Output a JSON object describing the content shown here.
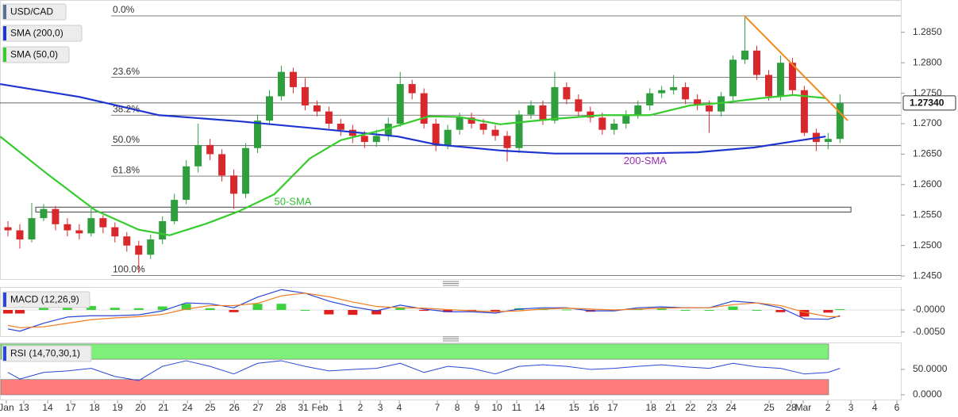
{
  "chart_data": [
    {
      "type": "candlestick",
      "title": "USD/CAD",
      "xlim": [
        -0.835,
        37.06
      ],
      "ylim": [
        1.2445,
        1.2903
      ],
      "yticks": [
        {
          "value": 1.285,
          "label": "1.2850"
        },
        {
          "value": 1.28,
          "label": "1.2800"
        },
        {
          "value": 1.275,
          "label": "1.2750"
        },
        {
          "value": 1.27,
          "label": "1.2700"
        },
        {
          "value": 1.265,
          "label": "1.2650"
        },
        {
          "value": 1.26,
          "label": "1.2600"
        },
        {
          "value": 1.255,
          "label": "1.2550"
        },
        {
          "value": 1.25,
          "label": "1.2500"
        },
        {
          "value": 1.245,
          "label": "1.2450"
        }
      ],
      "up_color": "#2e9e3e",
      "down_color": "#d9282b",
      "x": [
        -0.5,
        0,
        0.5,
        1,
        1.5,
        2,
        2.5,
        3,
        3.5,
        4,
        4.5,
        5,
        5.5,
        6,
        6.5,
        7,
        7.5,
        8,
        8.5,
        9,
        9.5,
        10,
        10.5,
        11,
        11.5,
        12,
        12.5,
        13,
        13.5,
        14,
        14.5,
        15,
        15.5,
        16,
        16.5,
        17,
        17.5,
        18,
        18.5,
        19,
        19.5,
        20,
        20.5,
        21,
        21.5,
        22,
        22.5,
        23,
        23.5,
        24,
        24.5,
        25,
        25.5,
        26,
        26.5,
        27,
        27.5,
        28,
        28.5,
        29,
        29.5,
        30,
        30.5,
        31,
        31.5,
        32,
        32.5,
        33,
        33.5,
        34,
        34.5
      ],
      "open": [
        1.253,
        1.2525,
        1.251,
        1.2545,
        1.256,
        1.2535,
        1.2525,
        1.252,
        1.2545,
        1.253,
        1.2515,
        1.25,
        1.2485,
        1.251,
        1.254,
        1.2575,
        1.263,
        1.2665,
        1.265,
        1.2615,
        1.2585,
        1.266,
        1.2705,
        1.2745,
        1.2785,
        1.276,
        1.273,
        1.272,
        1.27,
        1.269,
        1.268,
        1.267,
        1.268,
        1.27,
        1.2765,
        1.275,
        1.27,
        1.2665,
        1.269,
        1.271,
        1.27,
        1.269,
        1.268,
        1.266,
        1.2715,
        1.273,
        1.2705,
        1.276,
        1.274,
        1.272,
        1.271,
        1.269,
        1.27,
        1.2715,
        1.273,
        1.275,
        1.2755,
        1.276,
        1.274,
        1.273,
        1.272,
        1.2745,
        1.2805,
        1.282,
        1.278,
        1.2745,
        1.28,
        1.2755,
        1.2685,
        1.267,
        1.2675
      ],
      "high": [
        1.254,
        1.2535,
        1.257,
        1.2568,
        1.2565,
        1.2545,
        1.2535,
        1.2565,
        1.255,
        1.2538,
        1.2522,
        1.2508,
        1.2518,
        1.2548,
        1.2585,
        1.264,
        1.27,
        1.2675,
        1.2658,
        1.2625,
        1.2668,
        1.2715,
        1.2755,
        1.2795,
        1.2792,
        1.2775,
        1.2738,
        1.2728,
        1.2708,
        1.2698,
        1.2688,
        1.269,
        1.271,
        1.2785,
        1.2772,
        1.2758,
        1.2708,
        1.2698,
        1.2718,
        1.2718,
        1.2708,
        1.2698,
        1.2688,
        1.2722,
        1.2738,
        1.2738,
        1.2785,
        1.2768,
        1.2748,
        1.2728,
        1.2718,
        1.2708,
        1.2722,
        1.2738,
        1.2758,
        1.2762,
        1.278,
        1.2768,
        1.2748,
        1.2738,
        1.2752,
        1.2812,
        1.2875,
        1.2828,
        1.2788,
        1.2812,
        1.2808,
        1.2762,
        1.2692,
        1.2685,
        1.2748
      ],
      "low": [
        1.2515,
        1.2495,
        1.2505,
        1.254,
        1.2525,
        1.2515,
        1.251,
        1.2515,
        1.252,
        1.2505,
        1.249,
        1.2455,
        1.2478,
        1.2502,
        1.2535,
        1.2568,
        1.262,
        1.264,
        1.2605,
        1.256,
        1.2578,
        1.2652,
        1.2698,
        1.2738,
        1.275,
        1.2722,
        1.2712,
        1.2692,
        1.268,
        1.2668,
        1.266,
        1.2662,
        1.2672,
        1.2695,
        1.274,
        1.2692,
        1.2655,
        1.2658,
        1.2682,
        1.2692,
        1.2682,
        1.2672,
        1.2638,
        1.2652,
        1.2708,
        1.2698,
        1.27,
        1.2732,
        1.2712,
        1.2702,
        1.2682,
        1.2682,
        1.2692,
        1.2708,
        1.2722,
        1.2742,
        1.2748,
        1.2732,
        1.2722,
        1.2685,
        1.2712,
        1.2738,
        1.2798,
        1.2772,
        1.2738,
        1.2738,
        1.2748,
        1.268,
        1.2655,
        1.2658,
        1.2668
      ],
      "close": [
        1.2525,
        1.251,
        1.2545,
        1.256,
        1.2535,
        1.2525,
        1.252,
        1.2545,
        1.253,
        1.2515,
        1.25,
        1.2485,
        1.251,
        1.254,
        1.2575,
        1.263,
        1.2665,
        1.265,
        1.2615,
        1.2585,
        1.266,
        1.2705,
        1.2745,
        1.2785,
        1.276,
        1.273,
        1.272,
        1.27,
        1.269,
        1.268,
        1.267,
        1.268,
        1.27,
        1.2765,
        1.275,
        1.27,
        1.2665,
        1.269,
        1.271,
        1.27,
        1.269,
        1.268,
        1.266,
        1.2715,
        1.273,
        1.2705,
        1.276,
        1.274,
        1.272,
        1.271,
        1.269,
        1.27,
        1.2715,
        1.273,
        1.275,
        1.2755,
        1.276,
        1.274,
        1.273,
        1.272,
        1.2745,
        1.2805,
        1.282,
        1.278,
        1.2745,
        1.28,
        1.2755,
        1.2685,
        1.267,
        1.2675,
        1.2734
      ],
      "series": [
        {
          "name": "SMA (200,0)",
          "color": "#1f35d0",
          "x": [
            -0.83,
            2.5,
            5.85,
            9.2,
            12.5,
            15.9,
            17.5,
            20.2,
            22.5,
            25.9,
            28.5,
            30.9,
            32.55,
            33.9
          ],
          "values": [
            1.2765,
            1.2744,
            1.2714,
            1.2704,
            1.2692,
            1.2679,
            1.2666,
            1.2656,
            1.2651,
            1.2651,
            1.2653,
            1.2661,
            1.2671,
            1.2679
          ]
        },
        {
          "name": "SMA (50,0)",
          "color": "#36cc2e",
          "x": [
            -0.83,
            1.17,
            3.17,
            5,
            6.3,
            7.85,
            9.2,
            10.7,
            12.2,
            13.5,
            15.5,
            17.2,
            18.5,
            20.2,
            22.5,
            24.5,
            26.5,
            28.2,
            29.5,
            31.2,
            32.55,
            33.9
          ],
          "values": [
            1.2679,
            1.2617,
            1.2558,
            1.2526,
            1.2517,
            1.2536,
            1.2556,
            1.2584,
            1.2643,
            1.2673,
            1.2692,
            1.2712,
            1.2711,
            1.2699,
            1.2708,
            1.2714,
            1.2714,
            1.273,
            1.2734,
            1.2742,
            1.2747,
            1.2742
          ]
        }
      ],
      "fib_levels": [
        {
          "label": "0.0%",
          "value": 1.2877
        },
        {
          "label": "23.6%",
          "value": 1.2776
        },
        {
          "label": "38.2%",
          "value": 1.2714
        },
        {
          "label": "50.0%",
          "value": 1.2664
        },
        {
          "label": "61.8%",
          "value": 1.2614
        },
        {
          "label": "100.0%",
          "value": 1.2451
        }
      ],
      "last_price": {
        "value": 1.2734,
        "label": "1.27340"
      },
      "trendline": {
        "color": "#f28a1e",
        "x": [
          30.48,
          34.83
        ],
        "values": [
          1.2877,
          1.2705
        ]
      },
      "range_box": {
        "x": [
          0.67,
          34.96
        ],
        "values": [
          1.2555,
          1.2563
        ]
      },
      "annotations": [
        {
          "text": "50-SMA",
          "x": 10.7,
          "y": 1.2571,
          "color": "#2fbf2f"
        },
        {
          "text": "200-SMA",
          "x": 25.4,
          "y": 1.2638,
          "color": "#9b30b0"
        }
      ]
    },
    {
      "type": "macd",
      "title": "MACD (12,26,9)",
      "xlim": [
        -0.835,
        37.06
      ],
      "ylim": [
        -0.0061,
        0.0052
      ],
      "yticks": [
        {
          "value": 0,
          "label": "-0.0000"
        },
        {
          "value": -0.005,
          "label": "-0.0050"
        }
      ],
      "x": [
        -0.5,
        0,
        1,
        2,
        3,
        4,
        5,
        6,
        7,
        8,
        9,
        10,
        11,
        12,
        13,
        14,
        15,
        16,
        17,
        18,
        19,
        20,
        21,
        22,
        23,
        24,
        25,
        26,
        27,
        28,
        29,
        30,
        31,
        32,
        33,
        34,
        34.5
      ],
      "series": [
        {
          "color": "#2a46d6",
          "values": [
            -0.0043,
            -0.0048,
            -0.003,
            -0.0016,
            -0.0013,
            -0.0013,
            -0.0011,
            -0.0002,
            0.0016,
            0.0014,
            0.0005,
            0.0029,
            0.0046,
            0.0038,
            0.002,
            0.0007,
            -0.0002,
            0.0011,
            0.0002,
            -0.0004,
            -0.0004,
            -0.0007,
            0.0002,
            0.0005,
            0.0005,
            -0.0002,
            -0.0002,
            0.0005,
            0.0007,
            0.0005,
            0.0005,
            0.002,
            0.0016,
            0.0005,
            -0.002,
            -0.0021,
            -0.0013
          ]
        },
        {
          "color": "#f07c20",
          "values": [
            -0.0035,
            -0.004,
            -0.0038,
            -0.003,
            -0.0022,
            -0.0018,
            -0.0015,
            -0.001,
            0.0002,
            0.001,
            0.001,
            0.0015,
            0.0032,
            0.0038,
            0.003,
            0.0018,
            0.0008,
            0.0005,
            0.0004,
            0.0001,
            -0.0002,
            -0.0004,
            -0.0002,
            0.0002,
            0.0004,
            0.0002,
            0.0,
            0.0002,
            0.0004,
            0.0005,
            0.0005,
            0.0012,
            0.0016,
            0.001,
            -0.0005,
            -0.0015,
            -0.0015
          ]
        }
      ],
      "histogram": {
        "pos_color": "#3cd23c",
        "neg_color": "#e01e1e",
        "values": [
          -0.0008,
          -0.0008,
          0.0008,
          0.0014,
          0.0009,
          0.0005,
          0.0004,
          0.0008,
          0.0014,
          0.0004,
          -0.0005,
          0.0014,
          0.0014,
          0,
          -0.001,
          -0.0011,
          -0.001,
          0.0006,
          -0.0002,
          -0.0005,
          -0.0002,
          -0.0003,
          0.0004,
          0.0003,
          0.0001,
          -0.0004,
          -0.0002,
          0.0003,
          0.0003,
          0,
          0,
          0.0008,
          0,
          -0.0005,
          -0.0015,
          -0.0006,
          0.0002
        ]
      }
    },
    {
      "type": "rsi",
      "title": "RSI (14,70,30,1)",
      "xlim": [
        -0.835,
        37.06
      ],
      "ylim": [
        -11,
        103
      ],
      "yticks": [
        {
          "value": 50,
          "label": "50.0000"
        },
        {
          "value": 0,
          "label": "0.0000"
        }
      ],
      "bands": [
        {
          "from": 70,
          "to": 100,
          "color": "#7ef07a"
        },
        {
          "from": 0,
          "to": 30,
          "color": "#ff7c7c"
        }
      ],
      "x": [
        -0.5,
        0,
        1,
        2,
        3,
        4,
        5,
        6,
        7,
        8,
        9,
        10,
        11,
        12,
        13,
        14,
        15,
        16,
        17,
        18,
        19,
        20,
        21,
        22,
        23,
        24,
        25,
        26,
        27,
        28,
        29,
        30,
        31,
        32,
        33,
        34,
        34.5
      ],
      "series": [
        {
          "color": "#2a46d6",
          "values": [
            44,
            31,
            44,
            47,
            52,
            36,
            28,
            56,
            67,
            56,
            41,
            62,
            67,
            56,
            47,
            50,
            52,
            62,
            44,
            56,
            52,
            41,
            56,
            59,
            56,
            50,
            52,
            56,
            59,
            55,
            52,
            62,
            55,
            52,
            41,
            44,
            52
          ]
        }
      ],
      "xticks": [
        {
          "value": -0.57,
          "label": "Jan"
        },
        {
          "value": 0.17,
          "label": "13"
        },
        {
          "value": 1.17,
          "label": "14"
        },
        {
          "value": 2.14,
          "label": "17"
        },
        {
          "value": 3.14,
          "label": "18"
        },
        {
          "value": 4.11,
          "label": "19"
        },
        {
          "value": 5.08,
          "label": "20"
        },
        {
          "value": 6.04,
          "label": "21"
        },
        {
          "value": 7.05,
          "label": "24"
        },
        {
          "value": 8.01,
          "label": "25"
        },
        {
          "value": 9.02,
          "label": "26"
        },
        {
          "value": 10.02,
          "label": "27"
        },
        {
          "value": 10.98,
          "label": "28"
        },
        {
          "value": 11.92,
          "label": "31"
        },
        {
          "value": 12.62,
          "label": "Feb"
        },
        {
          "value": 13.49,
          "label": "1"
        },
        {
          "value": 14.32,
          "label": "2"
        },
        {
          "value": 15.16,
          "label": "3"
        },
        {
          "value": 15.96,
          "label": "4"
        },
        {
          "value": 17.56,
          "label": "7"
        },
        {
          "value": 18.4,
          "label": "8"
        },
        {
          "value": 19.23,
          "label": "9"
        },
        {
          "value": 20.07,
          "label": "10"
        },
        {
          "value": 20.9,
          "label": "11"
        },
        {
          "value": 21.87,
          "label": "14"
        },
        {
          "value": 23.31,
          "label": "15"
        },
        {
          "value": 24.14,
          "label": "16"
        },
        {
          "value": 24.94,
          "label": "17"
        },
        {
          "value": 26.55,
          "label": "18"
        },
        {
          "value": 27.38,
          "label": "21"
        },
        {
          "value": 28.21,
          "label": "22"
        },
        {
          "value": 29.11,
          "label": "23"
        },
        {
          "value": 29.92,
          "label": "24"
        },
        {
          "value": 31.52,
          "label": "25"
        },
        {
          "value": 32.45,
          "label": "28"
        },
        {
          "value": 32.95,
          "label": "Mar"
        },
        {
          "value": 33.99,
          "label": "2"
        },
        {
          "value": 34.96,
          "label": "3"
        },
        {
          "value": 35.96,
          "label": "4"
        },
        {
          "value": 36.89,
          "label": "6"
        }
      ]
    }
  ]
}
